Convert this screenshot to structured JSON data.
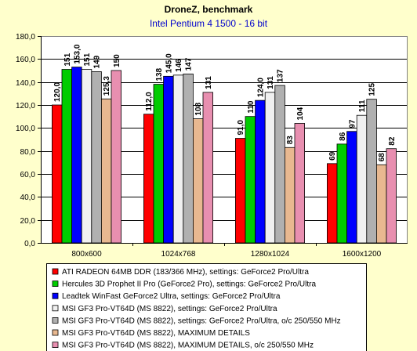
{
  "chart_data": {
    "type": "bar",
    "title": "DroneZ, benchmark",
    "subtitle": "Intel Pentium 4 1500 - 16 bit",
    "categories": [
      "800x600",
      "1024x768",
      "1280x1024",
      "1600x1200"
    ],
    "ylim": [
      0,
      180
    ],
    "yticks": [
      "0,0",
      "20,0",
      "40,0",
      "60,0",
      "80,0",
      "100,0",
      "120,0",
      "140,0",
      "160,0",
      "180,0"
    ],
    "grid": true,
    "legend_position": "bottom",
    "series": [
      {
        "name": "ATI RADEON 64MB DDR (183/366 MHz), settings: GeForce2 Pro/Ultra",
        "color": "#ff0000",
        "values": [
          120.0,
          112.0,
          91.0,
          69
        ],
        "labels": [
          "120,0",
          "112,0",
          "91,0",
          "69"
        ]
      },
      {
        "name": "Hercules 3D Prophet II Pro (GeForce2 Pro), settings: GeForce2 Pro/Ultra",
        "color": "#00cc00",
        "values": [
          151,
          138,
          110,
          86
        ],
        "labels": [
          "151",
          "138",
          "110",
          "86"
        ]
      },
      {
        "name": "Leadtek WinFast GeForce2 Ultra, settings: GeForce2 Pro/Ultra",
        "color": "#0000ff",
        "values": [
          153.0,
          145.0,
          124.0,
          97
        ],
        "labels": [
          "153,0",
          "145,0",
          "124,0",
          "97"
        ]
      },
      {
        "name": "MSI GF3 Pro-VT64D (MS 8822), settings: GeForce2 Pro/Ultra",
        "color": "#f0f0f0",
        "values": [
          151,
          146,
          131,
          111
        ],
        "labels": [
          "151",
          "146",
          "131",
          "111"
        ]
      },
      {
        "name": "MSI GF3 Pro-VT64D (MS 8822), settings: GeForce2 Pro/Ultra, o/c 250/550 MHz",
        "color": "#b0b0b0",
        "values": [
          149,
          147,
          137,
          125
        ],
        "labels": [
          "149",
          "147",
          "137",
          "125"
        ]
      },
      {
        "name": "MSI GF3 Pro-VT64D (MS 8822), MAXIMUM DETAILS",
        "color": "#e8b890",
        "values": [
          125.3,
          108,
          83,
          68
        ],
        "labels": [
          "125,3",
          "108",
          "83",
          "68"
        ]
      },
      {
        "name": "MSI GF3 Pro-VT64D (MS 8822), MAXIMUM DETAILS, o/c 250/550 MHz",
        "color": "#e88fb0",
        "values": [
          150,
          131,
          104,
          82
        ],
        "labels": [
          "150",
          "131",
          "104",
          "82"
        ]
      }
    ]
  }
}
